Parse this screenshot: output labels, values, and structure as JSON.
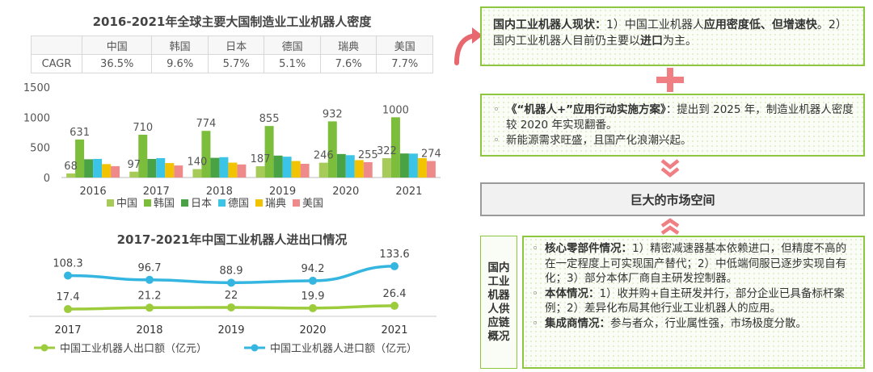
{
  "chart_data": [
    {
      "type": "bar",
      "title": "2016-2021年全球主要大国制造业工业机器人密度",
      "categories": [
        "2016",
        "2017",
        "2018",
        "2019",
        "2020",
        "2021"
      ],
      "series": [
        {
          "name": "中国",
          "color": "#a6cb58",
          "values": [
            68,
            97,
            140,
            187,
            246,
            322
          ]
        },
        {
          "name": "韩国",
          "color": "#7cbe3b",
          "values": [
            631,
            710,
            774,
            855,
            932,
            1000
          ]
        },
        {
          "name": "日本",
          "color": "#49a243",
          "values": [
            303,
            308,
            327,
            364,
            390,
            399
          ]
        },
        {
          "name": "德国",
          "color": "#3cc4e6",
          "values": [
            309,
            322,
            338,
            346,
            371,
            397
          ]
        },
        {
          "name": "瑞典",
          "color": "#f2c300",
          "values": [
            223,
            240,
            247,
            274,
            289,
            321
          ]
        },
        {
          "name": "美国",
          "color": "#ef8a8a",
          "values": [
            189,
            200,
            217,
            228,
            255,
            274
          ]
        }
      ],
      "labeled_values": [
        {
          "category": "2016",
          "series": "中国",
          "value": 68
        },
        {
          "category": "2016",
          "series": "韩国",
          "value": 631
        },
        {
          "category": "2017",
          "series": "中国",
          "value": 97
        },
        {
          "category": "2017",
          "series": "韩国",
          "value": 710
        },
        {
          "category": "2018",
          "series": "中国",
          "value": 140
        },
        {
          "category": "2018",
          "series": "韩国",
          "value": 774
        },
        {
          "category": "2019",
          "series": "中国",
          "value": 187
        },
        {
          "category": "2019",
          "series": "韩国",
          "value": 855
        },
        {
          "category": "2020",
          "series": "中国",
          "value": 246
        },
        {
          "category": "2020",
          "series": "韩国",
          "value": 932
        },
        {
          "category": "2020",
          "series": "美国",
          "value": 255
        },
        {
          "category": "2021",
          "series": "中国",
          "value": 322
        },
        {
          "category": "2021",
          "series": "韩国",
          "value": 1000
        },
        {
          "category": "2021",
          "series": "美国",
          "value": 274
        }
      ],
      "yticks": [
        "0",
        "500",
        "1000",
        "1500"
      ],
      "ylim": [
        0,
        1500
      ],
      "grid": false,
      "legend": "bottom",
      "table": {
        "header": [
          "",
          "中国",
          "韩国",
          "日本",
          "德国",
          "瑞典",
          "美国"
        ],
        "rows": [
          [
            "CAGR",
            "36.5%",
            "9.6%",
            "5.7%",
            "5.1%",
            "7.6%",
            "7.7%"
          ]
        ]
      }
    },
    {
      "type": "line",
      "title": "2017-2021年中国工业机器人进出口情况",
      "x": [
        "2017",
        "2018",
        "2019",
        "2020",
        "2021"
      ],
      "series": [
        {
          "name": "中国工业机器人出口额（亿元）",
          "color": "#9ccc3c",
          "values": [
            17.4,
            21.2,
            22.0,
            19.9,
            26.4
          ]
        },
        {
          "name": "中国工业机器人进口额（亿元）",
          "color": "#34b6e0",
          "values": [
            108.3,
            96.7,
            88.9,
            94.2,
            133.6
          ]
        }
      ],
      "grid": false,
      "legend": "bottom"
    }
  ],
  "panel": {
    "top_box": {
      "lead": "国内工业机器人现状：",
      "p1": "1）中国工业机器人",
      "b1": "应用密度低、但增速快",
      "p2": "。2）国内工业机器人目前仍主要以",
      "b2": "进口",
      "p3": "为主。"
    },
    "plus_symbol": "+",
    "middle_box": {
      "item1_bold": "《“机器人+”应用行动实施方案》",
      "item1_rest": "：提出到 2025 年，制造业机器人密度较 2020 年实现翻番。",
      "item2": "新能源需求旺盛，且国产化浪潮兴起。"
    },
    "center_label": "巨大的市场空间",
    "side_label": "国内工业机器人供应链概况",
    "bottom_box": {
      "item1_bold": "核心零部件情况：",
      "item1_rest": "1）精密减速器基本依赖进口，但精度不高的在一定程度上可实现国产替代；2）中低端伺服已逐步实现自有化；3）部分本体厂商自主研发控制器。",
      "item2_bold": "本体情况：",
      "item2_rest": "1）收并购+自主研发并行，部分企业已具备标杆案例；2）差异化布局其他行业工业机器人的应用。",
      "item3_bold": "集成商情况：",
      "item3_rest": "参与者众，行业属性强，市场极度分散。"
    },
    "colors": {
      "accent_green": "#8dc63f",
      "accent_pink": "#ef7f82",
      "arrow": "#e8686f"
    }
  }
}
